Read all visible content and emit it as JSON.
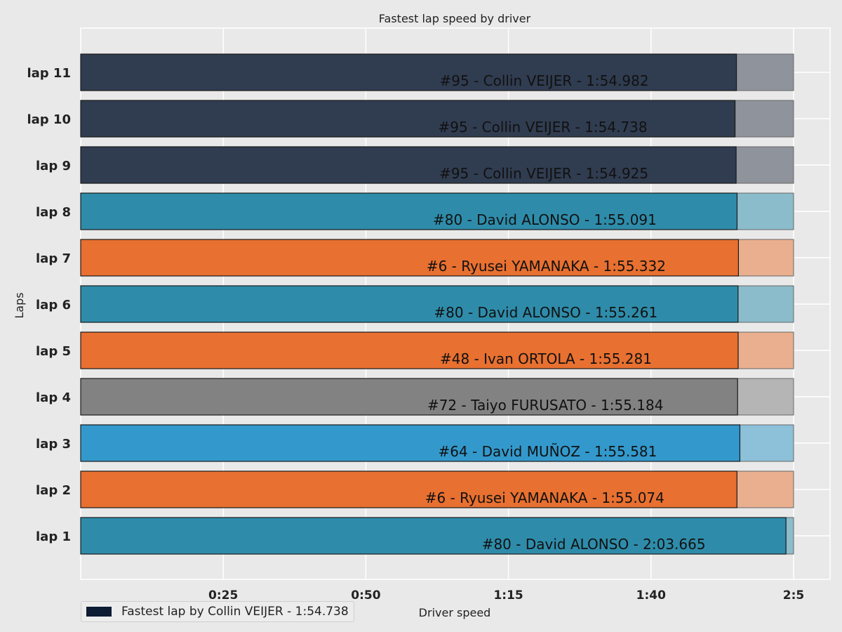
{
  "chart_data": {
    "type": "bar",
    "orientation": "horizontal",
    "title": "Fastest lap speed by driver",
    "xlabel": "Driver speed",
    "ylabel": "Laps",
    "grid": true,
    "legend_placement": "bottom-left",
    "xlim_seconds": [
      0,
      125
    ],
    "x_ticks": [
      {
        "value": 25,
        "label": "0:25"
      },
      {
        "value": 50,
        "label": "0:50"
      },
      {
        "value": 75,
        "label": "1:15"
      },
      {
        "value": 100,
        "label": "1:40"
      },
      {
        "value": 125,
        "label": "2:5"
      }
    ],
    "categories": [
      "lap 1",
      "lap 2",
      "lap 3",
      "lap 4",
      "lap 5",
      "lap 6",
      "lap 7",
      "lap 8",
      "lap 9",
      "lap 10",
      "lap 11"
    ],
    "values_seconds": [
      123.665,
      115.074,
      115.581,
      115.184,
      115.281,
      115.261,
      115.332,
      115.091,
      114.925,
      114.738,
      114.982
    ],
    "labels": [
      "#80 - David ALONSO - 2:03.665",
      "#6 - Ryusei YAMANAKA - 1:55.074",
      "#64 - David MUÑOZ - 1:55.581",
      "#72 - Taiyo FURUSATO - 1:55.184",
      "#48 - Ivan ORTOLA - 1:55.281",
      "#80 - David ALONSO - 1:55.261",
      "#6 - Ryusei YAMANAKA - 1:55.332",
      "#80 - David ALONSO - 1:55.091",
      "#95 - Collin VEIJER - 1:54.925",
      "#95 - Collin VEIJER - 1:54.738",
      "#95 - Collin VEIJER - 1:54.982"
    ],
    "colors": [
      "#2e8caa",
      "#e87030",
      "#3399cc",
      "#828282",
      "#e87030",
      "#2e8caa",
      "#e87030",
      "#2e8caa",
      "#303c50",
      "#303c50",
      "#303c50"
    ],
    "background_colors": [
      "#8bbccb",
      "#e9af8e",
      "#8dc0d9",
      "#b5b5b5",
      "#e9af8e",
      "#8bbccb",
      "#e9af8e",
      "#8bbccb",
      "#8f949c",
      "#8f949c",
      "#8f949c"
    ],
    "legend": {
      "label": "Fastest lap by Collin VEIJER - 1:54.738",
      "color": "#0d1b33"
    }
  }
}
